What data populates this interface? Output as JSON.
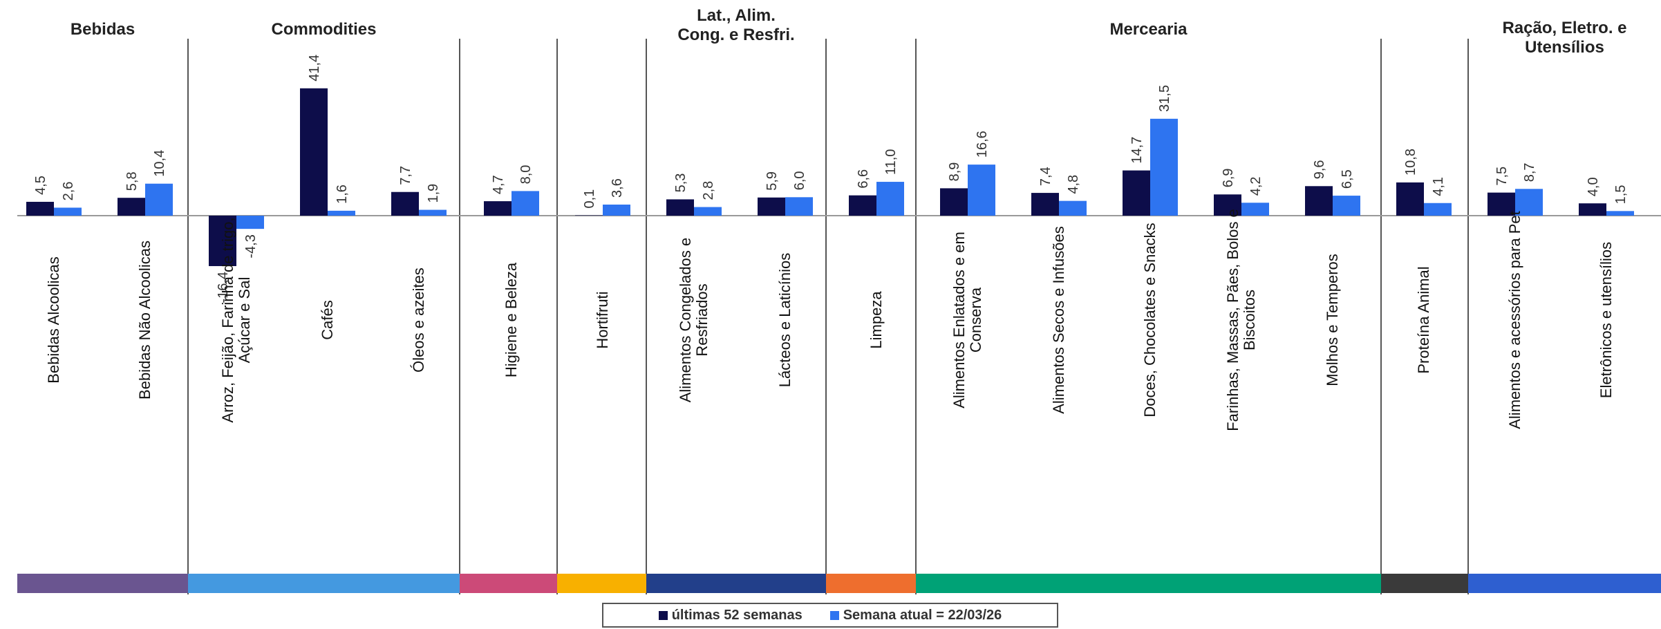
{
  "chart_data": {
    "type": "bar",
    "groups": [
      {
        "name": "Bebidas",
        "color": "#6a5590",
        "categories": [
          "Bebidas Alcoolicas",
          "Bebidas Não Alcoolicas"
        ]
      },
      {
        "name": "Commodities",
        "color": "#4499e0",
        "categories": [
          "Arroz, Feijão, Farinha de trigo, Açúcar e Sal",
          "Cafés",
          "Óleos e azeites"
        ]
      },
      {
        "name": "",
        "color": "#cc4a78",
        "categories": [
          "Higiene e Beleza"
        ]
      },
      {
        "name": "",
        "color": "#f8b000",
        "categories": [
          "Hortifruti"
        ]
      },
      {
        "name": "Lat., Alim. Cong. e Resfri.",
        "color": "#223f8a",
        "categories": [
          "Alimentos Congelados e Resfriados",
          "Lácteos e Laticínios"
        ]
      },
      {
        "name": "",
        "color": "#ee6e2e",
        "categories": [
          "Limpeza"
        ]
      },
      {
        "name": "Mercearia",
        "color": "#00a276",
        "categories": [
          "Alimentos Enlatados e em Conserva",
          "Alimentos Secos e Infusões",
          "Doces, Chocolates e Snacks",
          "Farinhas, Massas, Pães, Bolos e Biscoitos",
          "Molhos e Temperos"
        ]
      },
      {
        "name": "",
        "color": "#3a3a3a",
        "categories": [
          "Proteína Animal"
        ]
      },
      {
        "name": "Ração, Eletro. e Utensílios",
        "color": "#2e5fd0",
        "categories": [
          "Alimentos e acessórios para Pet",
          "Eletrônicos e utensílios"
        ]
      }
    ],
    "categories": [
      "Bebidas Alcoolicas",
      "Bebidas Não Alcoolicas",
      "Arroz, Feijão, Farinha de trigo, Açúcar e Sal",
      "Cafés",
      "Óleos e azeites",
      "Higiene e Beleza",
      "Hortifruti",
      "Alimentos Congelados e Resfriados",
      "Lácteos e Laticínios",
      "Limpeza",
      "Alimentos Enlatados e em Conserva",
      "Alimentos Secos e Infusões",
      "Doces, Chocolates e Snacks",
      "Farinhas, Massas, Pães, Bolos e Biscoitos",
      "Molhos e Temperos",
      "Proteína Animal",
      "Alimentos e acessórios para Pet",
      "Eletrônicos e utensílios"
    ],
    "series": [
      {
        "name": "últimas 52 semanas",
        "color": "#0d0d4a",
        "values": [
          4.5,
          5.8,
          -16.4,
          41.4,
          7.7,
          4.7,
          0.1,
          5.3,
          5.9,
          6.6,
          8.9,
          7.4,
          14.7,
          6.9,
          9.6,
          10.8,
          7.5,
          4.0
        ]
      },
      {
        "name": "Semana atual = 22/03/26",
        "color": "#2e74f0",
        "values": [
          2.6,
          10.4,
          -4.3,
          1.6,
          1.9,
          8.0,
          3.6,
          2.8,
          6.0,
          11.0,
          16.6,
          4.8,
          31.5,
          4.2,
          6.5,
          4.1,
          8.7,
          1.5
        ]
      }
    ],
    "value_labels": [
      [
        "4,5",
        "5,8",
        "-16,4",
        "41,4",
        "7,7",
        "4,7",
        "0,1",
        "5,3",
        "5,9",
        "6,6",
        "8,9",
        "7,4",
        "14,7",
        "6,9",
        "9,6",
        "10,8",
        "7,5",
        "4,0"
      ],
      [
        "2,6",
        "10,4",
        "-4,3",
        "1,6",
        "1,9",
        "8,0",
        "3,6",
        "2,8",
        "6,0",
        "11,0",
        "16,6",
        "4,8",
        "31,5",
        "4,2",
        "6,5",
        "4,1",
        "8,7",
        "1,5"
      ]
    ],
    "legend_position": "bottom",
    "grid": false
  }
}
